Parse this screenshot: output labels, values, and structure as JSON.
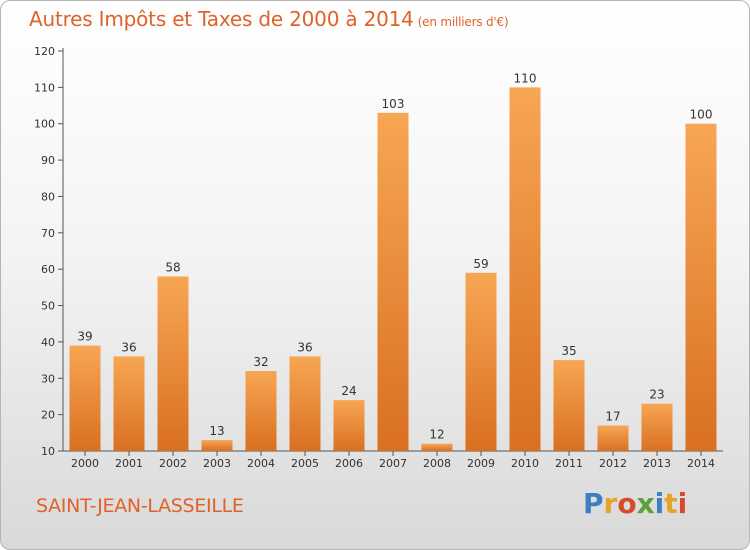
{
  "header": {
    "title": "Autres Impôts et Taxes de 2000 à 2014",
    "unit": "(en milliers d'€)"
  },
  "commune": "SAINT-JEAN-LASSEILLE",
  "logo": {
    "text": "Proxiti",
    "letters": [
      "P",
      "r",
      "o",
      "x",
      "i",
      "t",
      "i"
    ],
    "colors": [
      "#3e7fc4",
      "#e6a524",
      "#d94a2a",
      "#5aa03c"
    ]
  },
  "chart_data": {
    "type": "bar",
    "title": "Autres Impôts et Taxes de 2000 à 2014",
    "subtitle": "(en milliers d'€)",
    "xlabel": "",
    "ylabel": "",
    "categories": [
      "2000",
      "2001",
      "2002",
      "2003",
      "2004",
      "2005",
      "2006",
      "2007",
      "2008",
      "2009",
      "2010",
      "2011",
      "2012",
      "2013",
      "2014"
    ],
    "values": [
      39,
      36,
      58,
      13,
      32,
      36,
      24,
      103,
      12,
      59,
      110,
      35,
      17,
      23,
      100
    ],
    "ylim": [
      10,
      120
    ],
    "yticks": [
      10,
      20,
      30,
      40,
      50,
      60,
      70,
      80,
      90,
      100,
      110,
      120
    ],
    "grid": false,
    "bar_color_light": "#f7a654",
    "bar_color_dark": "#d97020",
    "axis_color": "#555555"
  }
}
